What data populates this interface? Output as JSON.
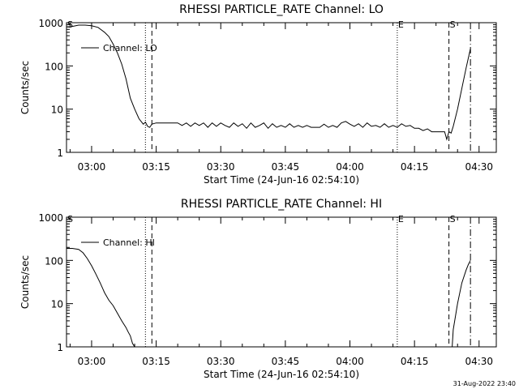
{
  "footer_timestamp": "31-Aug-2022 23:40",
  "chart_data": [
    {
      "type": "line",
      "title": "RHESSI PARTICLE_RATE Channel: LO",
      "xlabel": "Start Time (24-Jun-16 02:54:10)",
      "ylabel": "Counts/sec",
      "yscale": "log",
      "ylim": [
        1,
        1000
      ],
      "xlim": [
        "02:54:10",
        "04:34:00"
      ],
      "x_ticks": [
        "03:00",
        "03:15",
        "03:30",
        "03:45",
        "04:00",
        "04:15",
        "04:30"
      ],
      "y_ticks": [
        "1",
        "10",
        "100",
        "1000"
      ],
      "legend": {
        "placement": "top-left"
      },
      "series": [
        {
          "name": "Channel: LO",
          "x": [
            "02:54:10",
            "02:55:30",
            "02:57:00",
            "02:58:30",
            "03:00:00",
            "03:01:30",
            "03:03:00",
            "03:04:00",
            "03:05:00",
            "03:06:00",
            "03:07:00",
            "03:08:00",
            "03:09:00",
            "03:10:00",
            "03:11:00",
            "03:12:00",
            "03:12:30",
            "03:13:00",
            "03:13:30",
            "03:14:00",
            "03:15:00",
            "03:16:00",
            "03:17:00",
            "03:18:00",
            "03:19:00",
            "03:20:00",
            "03:21:00",
            "03:22:00",
            "03:23:00",
            "03:24:00",
            "03:25:00",
            "03:26:00",
            "03:27:00",
            "03:28:00",
            "03:29:00",
            "03:30:00",
            "03:31:00",
            "03:32:00",
            "03:33:00",
            "03:34:00",
            "03:35:00",
            "03:36:00",
            "03:37:00",
            "03:38:00",
            "03:39:00",
            "03:40:00",
            "03:41:00",
            "03:42:00",
            "03:43:00",
            "03:44:00",
            "03:45:00",
            "03:46:00",
            "03:47:00",
            "03:48:00",
            "03:49:00",
            "03:50:00",
            "03:51:00",
            "03:52:00",
            "03:53:00",
            "03:54:00",
            "03:55:00",
            "03:56:00",
            "03:57:00",
            "03:58:00",
            "03:59:00",
            "04:00:00",
            "04:01:00",
            "04:02:00",
            "04:03:00",
            "04:04:00",
            "04:05:00",
            "04:06:00",
            "04:07:00",
            "04:08:00",
            "04:09:00",
            "04:10:00",
            "04:11:00",
            "04:12:00",
            "04:13:00",
            "04:14:00",
            "04:15:00",
            "04:16:00",
            "04:17:00",
            "04:18:00",
            "04:19:00",
            "04:20:00",
            "04:21:00",
            "04:22:00",
            "04:22:30",
            "04:23:00",
            "04:23:30",
            "04:24:00",
            "04:25:00",
            "04:26:00",
            "04:27:00",
            "04:28:00"
          ],
          "y": [
            800,
            820,
            880,
            880,
            850,
            780,
            600,
            480,
            320,
            200,
            110,
            50,
            18,
            10,
            6,
            4.5,
            5,
            4,
            3.8,
            4.5,
            4.8,
            4.8,
            4.8,
            4.8,
            4.8,
            4.8,
            4.2,
            4.8,
            4,
            4.8,
            4.2,
            4.8,
            3.8,
            4.8,
            4,
            4.8,
            4.2,
            3.8,
            4.8,
            4,
            4.6,
            3.6,
            4.8,
            3.8,
            4.2,
            4.8,
            3.6,
            4.6,
            3.8,
            4.2,
            3.8,
            4.6,
            3.8,
            4.2,
            3.8,
            4.2,
            3.8,
            3.8,
            3.8,
            4.5,
            3.8,
            4.2,
            3.8,
            4.8,
            5.2,
            4.5,
            4,
            4.6,
            3.8,
            4.8,
            4,
            4.2,
            3.8,
            4.6,
            3.8,
            4.2,
            3.8,
            4.6,
            4,
            4.2,
            3.6,
            3.6,
            3.2,
            3.5,
            3,
            3,
            3,
            3,
            2,
            3,
            2.8,
            4,
            10,
            30,
            90,
            250
          ]
        }
      ],
      "markers": [
        {
          "x": "02:54:10",
          "label": "S",
          "style": "solid"
        },
        {
          "x": "03:12:30",
          "label": "",
          "style": "dotted"
        },
        {
          "x": "03:14:00",
          "label": "",
          "style": "dashed"
        },
        {
          "x": "04:11:00",
          "label": "E",
          "style": "dotted"
        },
        {
          "x": "04:23:00",
          "label": "S",
          "style": "dashed"
        },
        {
          "x": "04:28:00",
          "label": "",
          "style": "dashdot"
        }
      ]
    },
    {
      "type": "line",
      "title": "RHESSI PARTICLE_RATE Channel: HI",
      "xlabel": "Start Time (24-Jun-16 02:54:10)",
      "ylabel": "Counts/sec",
      "yscale": "log",
      "ylim": [
        1,
        1000
      ],
      "xlim": [
        "02:54:10",
        "04:34:00"
      ],
      "x_ticks": [
        "03:00",
        "03:15",
        "03:30",
        "03:45",
        "04:00",
        "04:15",
        "04:30"
      ],
      "y_ticks": [
        "1",
        "10",
        "100",
        "1000"
      ],
      "legend": {
        "placement": "top-left"
      },
      "series": [
        {
          "name": "Channel: HI",
          "segments": [
            {
              "x": [
                "02:54:10",
                "02:55:30",
                "02:57:00",
                "02:58:00",
                "02:59:00",
                "03:00:00",
                "03:01:00",
                "03:02:00",
                "03:03:00",
                "03:04:00",
                "03:05:00",
                "03:06:00",
                "03:07:00",
                "03:08:00",
                "03:08:30",
                "03:09:00",
                "03:09:30",
                "03:10:00"
              ],
              "y": [
                190,
                190,
                180,
                150,
                110,
                75,
                48,
                30,
                18,
                12,
                9,
                6,
                4,
                2.8,
                2.2,
                1.8,
                1.2,
                1
              ]
            },
            {
              "x": [
                "04:23:45",
                "04:24:00",
                "04:25:00",
                "04:26:00",
                "04:27:00",
                "04:27:30",
                "04:28:00"
              ],
              "y": [
                1,
                2.5,
                10,
                30,
                60,
                80,
                100
              ]
            }
          ]
        }
      ],
      "markers": [
        {
          "x": "02:54:10",
          "label": "S",
          "style": "solid"
        },
        {
          "x": "03:12:30",
          "label": "",
          "style": "dotted"
        },
        {
          "x": "03:14:00",
          "label": "",
          "style": "dashed"
        },
        {
          "x": "04:11:00",
          "label": "E",
          "style": "dotted"
        },
        {
          "x": "04:23:00",
          "label": "S",
          "style": "dashed"
        },
        {
          "x": "04:28:00",
          "label": "",
          "style": "dashdot"
        }
      ]
    }
  ]
}
